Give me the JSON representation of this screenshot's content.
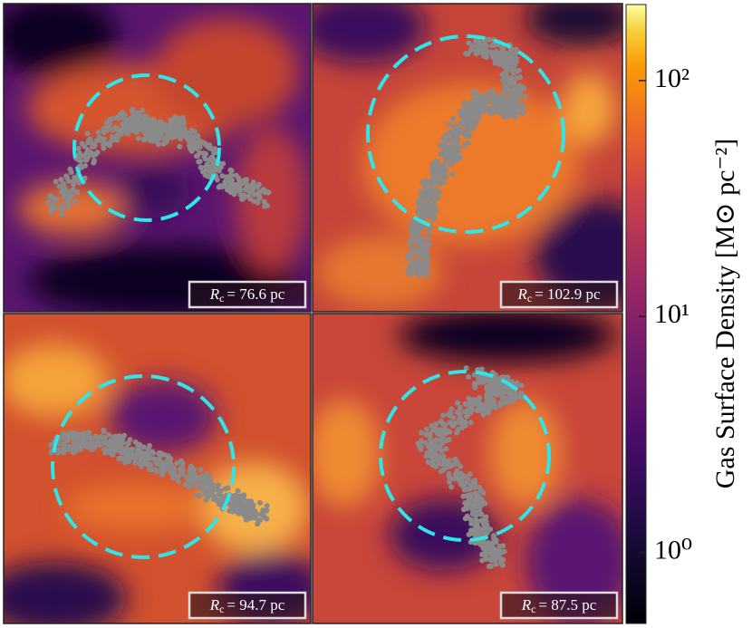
{
  "panels": [
    {
      "symbol": "R",
      "subscript": "c",
      "text": "= 76.6 pc"
    },
    {
      "symbol": "R",
      "subscript": "c",
      "text": "= 102.9 pc"
    },
    {
      "symbol": "R",
      "subscript": "c",
      "text": "= 94.7 pc"
    },
    {
      "symbol": "R",
      "subscript": "c",
      "text": "= 87.5 pc"
    }
  ],
  "colorbar": {
    "label": "Gas Surface Density [M⊙ pc⁻²]",
    "scale": "log",
    "lim": [
      0.5,
      210
    ],
    "ticks": [
      {
        "value": 1,
        "label": "10⁰"
      },
      {
        "value": 10,
        "label": "10¹"
      },
      {
        "value": 100,
        "label": "10²"
      }
    ]
  }
}
